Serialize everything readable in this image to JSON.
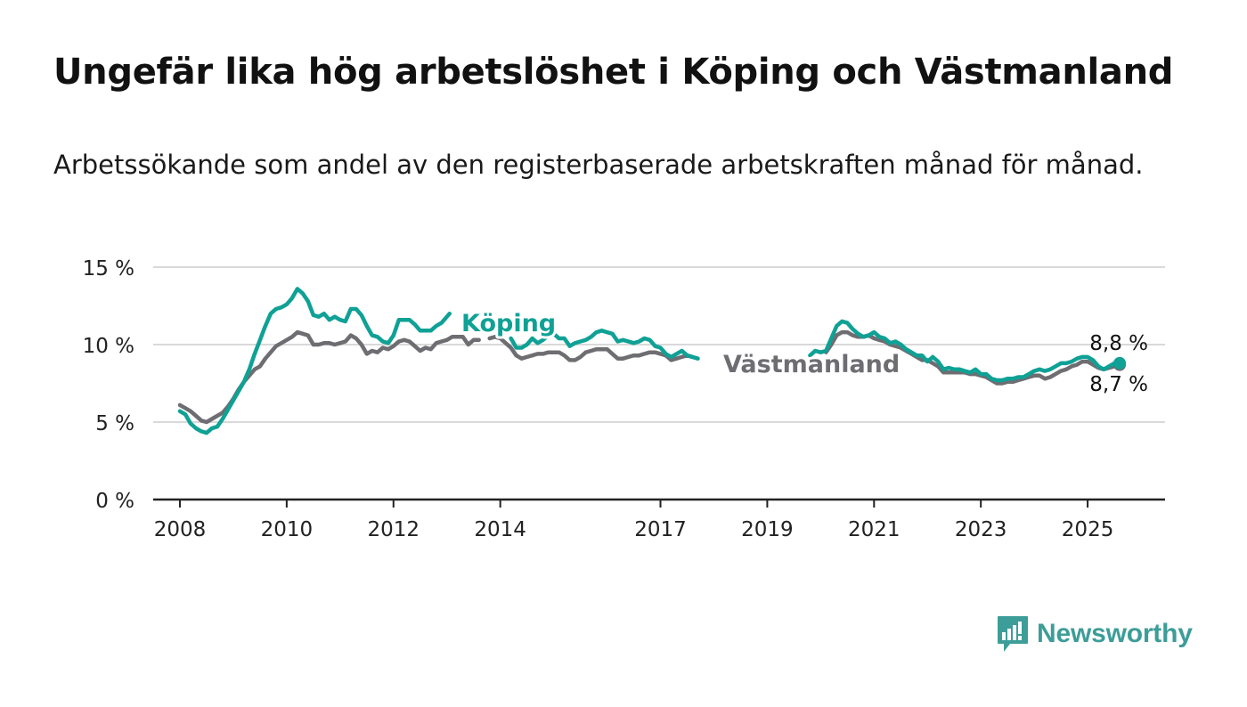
{
  "title": "Ungefär lika hög arbetslöshet i Köping och Västmanland",
  "subtitle": "Arbetssökande som andel av den registerbaserade arbetskraften månad för månad.",
  "brand": "Newsworthy",
  "colors": {
    "koping": "#0fa195",
    "vastmanland": "#6d6d72",
    "grid": "#d9d9d9",
    "axis": "#222222",
    "brand": "#3d9d98"
  },
  "chart_data": {
    "type": "line",
    "xlim": [
      2007.5,
      2026.45
    ],
    "ylim": [
      0,
      15
    ],
    "y_ticks": [
      0,
      5,
      10,
      15
    ],
    "y_tick_labels": [
      "0 %",
      "5 %",
      "10 %",
      "15 %"
    ],
    "x_ticks": [
      2008,
      2010,
      2012,
      2014,
      2017,
      2019,
      2021,
      2023,
      2025
    ],
    "x_tick_labels": [
      "2008",
      "2010",
      "2012",
      "2014",
      "2017",
      "2019",
      "2021",
      "2023",
      "2025"
    ],
    "grid": true,
    "series": [
      {
        "name": "Köping",
        "color": "#0fa195",
        "label_text": "Köping",
        "end_label": "8,8 %",
        "points": [
          [
            2008.0,
            5.7
          ],
          [
            2008.1,
            5.5
          ],
          [
            2008.2,
            4.9
          ],
          [
            2008.3,
            4.6
          ],
          [
            2008.4,
            4.4
          ],
          [
            2008.5,
            4.3
          ],
          [
            2008.6,
            4.6
          ],
          [
            2008.7,
            4.7
          ],
          [
            2008.8,
            5.2
          ],
          [
            2008.9,
            5.8
          ],
          [
            2009.0,
            6.4
          ],
          [
            2009.1,
            7.0
          ],
          [
            2009.2,
            7.6
          ],
          [
            2009.3,
            8.4
          ],
          [
            2009.4,
            9.4
          ],
          [
            2009.5,
            10.3
          ],
          [
            2009.6,
            11.2
          ],
          [
            2009.7,
            12.0
          ],
          [
            2009.8,
            12.3
          ],
          [
            2009.9,
            12.4
          ],
          [
            2010.0,
            12.6
          ],
          [
            2010.1,
            13.0
          ],
          [
            2010.2,
            13.6
          ],
          [
            2010.3,
            13.3
          ],
          [
            2010.4,
            12.8
          ],
          [
            2010.5,
            11.9
          ],
          [
            2010.6,
            11.8
          ],
          [
            2010.7,
            12.0
          ],
          [
            2010.8,
            11.6
          ],
          [
            2010.9,
            11.8
          ],
          [
            2011.0,
            11.6
          ],
          [
            2011.1,
            11.5
          ],
          [
            2011.2,
            12.3
          ],
          [
            2011.3,
            12.3
          ],
          [
            2011.4,
            11.9
          ],
          [
            2011.5,
            11.2
          ],
          [
            2011.6,
            10.6
          ],
          [
            2011.7,
            10.5
          ],
          [
            2011.8,
            10.2
          ],
          [
            2011.9,
            10.1
          ],
          [
            2012.0,
            10.6
          ],
          [
            2012.1,
            11.6
          ],
          [
            2012.2,
            11.6
          ],
          [
            2012.3,
            11.6
          ],
          [
            2012.4,
            11.3
          ],
          [
            2012.5,
            10.9
          ],
          [
            2012.6,
            10.9
          ],
          [
            2012.7,
            10.9
          ],
          [
            2012.8,
            11.2
          ],
          [
            2012.9,
            11.4
          ],
          [
            2013.0,
            11.8
          ],
          [
            2013.05,
            12.0
          ],
          null,
          [
            2014.2,
            10.4
          ],
          [
            2014.3,
            9.8
          ],
          [
            2014.4,
            9.8
          ],
          [
            2014.5,
            10.0
          ],
          [
            2014.6,
            10.4
          ],
          [
            2014.7,
            10.1
          ],
          [
            2014.8,
            10.3
          ],
          [
            2014.9,
            10.6
          ],
          [
            2015.0,
            10.7
          ],
          [
            2015.1,
            10.4
          ],
          [
            2015.2,
            10.4
          ],
          [
            2015.3,
            9.9
          ],
          [
            2015.4,
            10.1
          ],
          [
            2015.5,
            10.2
          ],
          [
            2015.6,
            10.3
          ],
          [
            2015.7,
            10.5
          ],
          [
            2015.8,
            10.8
          ],
          [
            2015.9,
            10.9
          ],
          [
            2016.0,
            10.8
          ],
          [
            2016.1,
            10.7
          ],
          [
            2016.2,
            10.2
          ],
          [
            2016.3,
            10.3
          ],
          [
            2016.4,
            10.2
          ],
          [
            2016.5,
            10.1
          ],
          [
            2016.6,
            10.2
          ],
          [
            2016.7,
            10.4
          ],
          [
            2016.8,
            10.3
          ],
          [
            2016.9,
            9.9
          ],
          [
            2017.0,
            9.8
          ],
          [
            2017.1,
            9.4
          ],
          [
            2017.2,
            9.2
          ],
          [
            2017.3,
            9.4
          ],
          [
            2017.4,
            9.6
          ],
          [
            2017.5,
            9.3
          ],
          [
            2017.6,
            9.2
          ],
          [
            2017.7,
            9.1
          ],
          null,
          [
            2019.8,
            9.3
          ],
          [
            2019.9,
            9.6
          ],
          [
            2020.0,
            9.5
          ],
          [
            2020.1,
            9.6
          ],
          [
            2020.2,
            10.4
          ],
          [
            2020.3,
            11.2
          ],
          [
            2020.4,
            11.5
          ],
          [
            2020.5,
            11.4
          ],
          [
            2020.6,
            11.0
          ],
          [
            2020.7,
            10.7
          ],
          [
            2020.8,
            10.5
          ],
          [
            2020.9,
            10.6
          ],
          [
            2021.0,
            10.8
          ],
          [
            2021.1,
            10.5
          ],
          [
            2021.2,
            10.4
          ],
          [
            2021.3,
            10.1
          ],
          [
            2021.4,
            10.2
          ],
          [
            2021.5,
            10.0
          ],
          [
            2021.6,
            9.7
          ],
          [
            2021.7,
            9.5
          ],
          [
            2021.8,
            9.3
          ],
          [
            2021.9,
            9.3
          ],
          [
            2022.0,
            8.9
          ],
          [
            2022.1,
            9.2
          ],
          [
            2022.2,
            8.9
          ],
          [
            2022.3,
            8.4
          ],
          [
            2022.4,
            8.5
          ],
          [
            2022.5,
            8.4
          ],
          [
            2022.6,
            8.4
          ],
          [
            2022.7,
            8.3
          ],
          [
            2022.8,
            8.2
          ],
          [
            2022.9,
            8.4
          ],
          [
            2023.0,
            8.1
          ],
          [
            2023.1,
            8.1
          ],
          [
            2023.2,
            7.8
          ],
          [
            2023.3,
            7.7
          ],
          [
            2023.4,
            7.7
          ],
          [
            2023.5,
            7.8
          ],
          [
            2023.6,
            7.8
          ],
          [
            2023.7,
            7.9
          ],
          [
            2023.8,
            7.9
          ],
          [
            2023.9,
            8.1
          ],
          [
            2024.0,
            8.3
          ],
          [
            2024.1,
            8.4
          ],
          [
            2024.2,
            8.3
          ],
          [
            2024.3,
            8.4
          ],
          [
            2024.4,
            8.6
          ],
          [
            2024.5,
            8.8
          ],
          [
            2024.6,
            8.8
          ],
          [
            2024.7,
            8.9
          ],
          [
            2024.8,
            9.1
          ],
          [
            2024.9,
            9.2
          ],
          [
            2025.0,
            9.2
          ],
          [
            2025.1,
            9.0
          ],
          [
            2025.2,
            8.6
          ],
          [
            2025.3,
            8.4
          ],
          [
            2025.4,
            8.6
          ],
          [
            2025.5,
            8.8
          ],
          [
            2025.6,
            8.8
          ]
        ]
      },
      {
        "name": "Västmanland",
        "color": "#6d6d72",
        "label_text": "Västmanland",
        "end_label": "8,7 %",
        "points": [
          [
            2008.0,
            6.1
          ],
          [
            2008.1,
            5.9
          ],
          [
            2008.2,
            5.7
          ],
          [
            2008.3,
            5.4
          ],
          [
            2008.4,
            5.1
          ],
          [
            2008.5,
            5.0
          ],
          [
            2008.6,
            5.2
          ],
          [
            2008.7,
            5.4
          ],
          [
            2008.8,
            5.6
          ],
          [
            2008.9,
            6.0
          ],
          [
            2009.0,
            6.5
          ],
          [
            2009.1,
            7.1
          ],
          [
            2009.2,
            7.6
          ],
          [
            2009.3,
            8.0
          ],
          [
            2009.4,
            8.4
          ],
          [
            2009.5,
            8.6
          ],
          [
            2009.6,
            9.1
          ],
          [
            2009.7,
            9.5
          ],
          [
            2009.8,
            9.9
          ],
          [
            2009.9,
            10.1
          ],
          [
            2010.0,
            10.3
          ],
          [
            2010.1,
            10.5
          ],
          [
            2010.2,
            10.8
          ],
          [
            2010.3,
            10.7
          ],
          [
            2010.4,
            10.6
          ],
          [
            2010.5,
            10.0
          ],
          [
            2010.6,
            10.0
          ],
          [
            2010.7,
            10.1
          ],
          [
            2010.8,
            10.1
          ],
          [
            2010.9,
            10.0
          ],
          [
            2011.0,
            10.1
          ],
          [
            2011.1,
            10.2
          ],
          [
            2011.2,
            10.6
          ],
          [
            2011.3,
            10.4
          ],
          [
            2011.4,
            10.0
          ],
          [
            2011.5,
            9.4
          ],
          [
            2011.6,
            9.6
          ],
          [
            2011.7,
            9.5
          ],
          [
            2011.8,
            9.8
          ],
          [
            2011.9,
            9.7
          ],
          [
            2012.0,
            9.9
          ],
          [
            2012.1,
            10.2
          ],
          [
            2012.2,
            10.3
          ],
          [
            2012.3,
            10.2
          ],
          [
            2012.4,
            9.9
          ],
          [
            2012.5,
            9.6
          ],
          [
            2012.6,
            9.8
          ],
          [
            2012.7,
            9.7
          ],
          [
            2012.8,
            10.1
          ],
          [
            2012.9,
            10.2
          ],
          [
            2013.0,
            10.3
          ],
          [
            2013.1,
            10.5
          ],
          [
            2013.2,
            10.5
          ],
          [
            2013.3,
            10.5
          ],
          [
            2013.4,
            10.0
          ],
          [
            2013.5,
            10.3
          ],
          [
            2013.6,
            10.3
          ],
          null,
          [
            2013.8,
            10.4
          ],
          [
            2013.9,
            10.5
          ],
          [
            2014.0,
            10.4
          ],
          [
            2014.1,
            10.1
          ],
          [
            2014.2,
            9.8
          ],
          [
            2014.3,
            9.3
          ],
          [
            2014.4,
            9.1
          ],
          [
            2014.5,
            9.2
          ],
          [
            2014.6,
            9.3
          ],
          [
            2014.7,
            9.4
          ],
          [
            2014.8,
            9.4
          ],
          [
            2014.9,
            9.5
          ],
          [
            2015.0,
            9.5
          ],
          [
            2015.1,
            9.5
          ],
          [
            2015.2,
            9.3
          ],
          [
            2015.3,
            9.0
          ],
          [
            2015.4,
            9.0
          ],
          [
            2015.5,
            9.2
          ],
          [
            2015.6,
            9.5
          ],
          [
            2015.7,
            9.6
          ],
          [
            2015.8,
            9.7
          ],
          [
            2015.9,
            9.7
          ],
          [
            2016.0,
            9.7
          ],
          [
            2016.1,
            9.4
          ],
          [
            2016.2,
            9.1
          ],
          [
            2016.3,
            9.1
          ],
          [
            2016.4,
            9.2
          ],
          [
            2016.5,
            9.3
          ],
          [
            2016.6,
            9.3
          ],
          [
            2016.7,
            9.4
          ],
          [
            2016.8,
            9.5
          ],
          [
            2016.9,
            9.5
          ],
          [
            2017.0,
            9.4
          ],
          [
            2017.1,
            9.3
          ],
          [
            2017.2,
            9.0
          ],
          [
            2017.3,
            9.1
          ],
          [
            2017.4,
            9.2
          ],
          [
            2017.5,
            9.3
          ],
          [
            2017.6,
            9.2
          ],
          null,
          [
            2020.1,
            9.5
          ],
          [
            2020.2,
            10.0
          ],
          [
            2020.3,
            10.6
          ],
          [
            2020.4,
            10.8
          ],
          [
            2020.5,
            10.8
          ],
          [
            2020.6,
            10.6
          ],
          [
            2020.7,
            10.5
          ],
          [
            2020.8,
            10.5
          ],
          [
            2020.9,
            10.6
          ],
          [
            2021.0,
            10.4
          ],
          [
            2021.1,
            10.3
          ],
          [
            2021.2,
            10.2
          ],
          [
            2021.3,
            10.0
          ],
          [
            2021.4,
            9.9
          ],
          [
            2021.5,
            9.8
          ],
          [
            2021.6,
            9.6
          ],
          [
            2021.7,
            9.4
          ],
          [
            2021.8,
            9.2
          ],
          [
            2021.9,
            9.0
          ],
          [
            2022.0,
            9.0
          ],
          [
            2022.1,
            8.8
          ],
          [
            2022.2,
            8.6
          ],
          [
            2022.3,
            8.2
          ],
          [
            2022.4,
            8.2
          ],
          [
            2022.5,
            8.2
          ],
          [
            2022.6,
            8.2
          ],
          [
            2022.7,
            8.2
          ],
          [
            2022.8,
            8.1
          ],
          [
            2022.9,
            8.1
          ],
          [
            2023.0,
            8.0
          ],
          [
            2023.1,
            7.9
          ],
          [
            2023.2,
            7.7
          ],
          [
            2023.3,
            7.5
          ],
          [
            2023.4,
            7.5
          ],
          [
            2023.5,
            7.6
          ],
          [
            2023.6,
            7.6
          ],
          [
            2023.7,
            7.7
          ],
          [
            2023.8,
            7.8
          ],
          [
            2023.9,
            7.9
          ],
          [
            2024.0,
            8.0
          ],
          [
            2024.1,
            8.0
          ],
          [
            2024.2,
            7.8
          ],
          [
            2024.3,
            7.9
          ],
          [
            2024.4,
            8.1
          ],
          [
            2024.5,
            8.3
          ],
          [
            2024.6,
            8.4
          ],
          [
            2024.7,
            8.6
          ],
          [
            2024.8,
            8.7
          ],
          [
            2024.9,
            8.9
          ],
          [
            2025.0,
            8.9
          ],
          [
            2025.1,
            8.7
          ],
          [
            2025.2,
            8.5
          ],
          [
            2025.3,
            8.4
          ],
          [
            2025.4,
            8.5
          ],
          [
            2025.5,
            8.6
          ],
          [
            2025.6,
            8.7
          ]
        ]
      }
    ]
  }
}
